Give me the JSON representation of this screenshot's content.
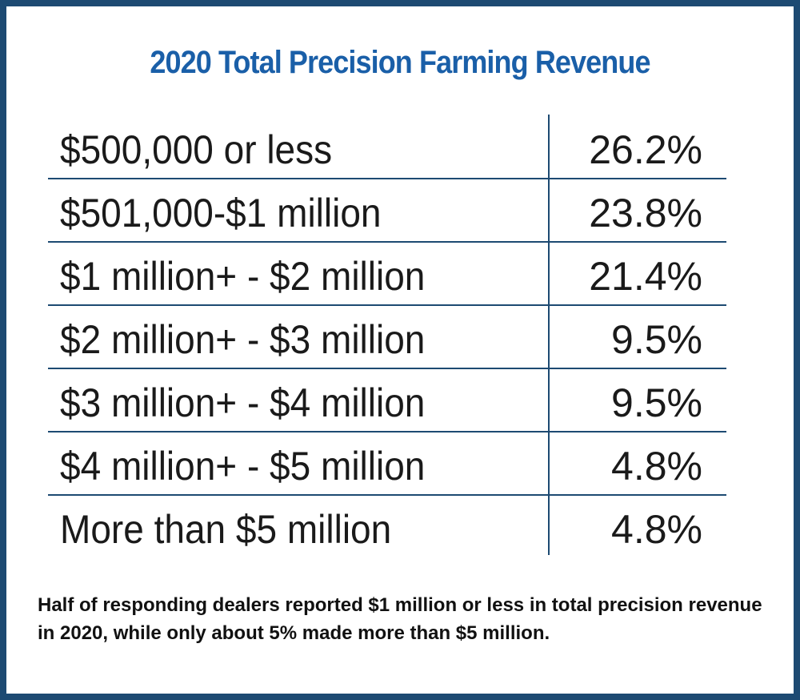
{
  "title": "2020 Total Precision Farming Revenue",
  "table": {
    "rows": [
      [
        "$500,000 or less",
        "26.2%"
      ],
      [
        "$501,000-$1 million",
        "23.8%"
      ],
      [
        "$1 million+ - $2 million",
        "21.4%"
      ],
      [
        "$2 million+ - $3 million",
        "9.5%"
      ],
      [
        "$3 million+ - $4 million",
        "9.5%"
      ],
      [
        "$4 million+ - $5 million",
        "4.8%"
      ],
      [
        "More than $5 million",
        "4.8%"
      ]
    ]
  },
  "footnote": "Half of responding dealers reported $1 million or less in total precision revenue in 2020, while only about 5% made more than $5 million."
}
